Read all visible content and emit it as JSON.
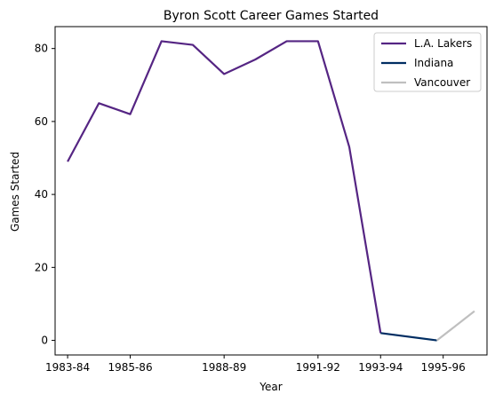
{
  "chart_data": {
    "type": "line",
    "title": "Byron Scott Career Games Started",
    "xlabel": "Year",
    "ylabel": "Games Started",
    "x_ticks": [
      "1983-84",
      "1985-86",
      "1988-89",
      "1991-92",
      "1993-94",
      "1995-96"
    ],
    "x_tick_index": [
      0,
      2,
      5,
      8,
      10,
      12
    ],
    "ylim": [
      -4,
      86
    ],
    "y_ticks": [
      0,
      20,
      40,
      60,
      80
    ],
    "xlim": [
      -0.4,
      13.4
    ],
    "grid": false,
    "legend_position": "top-right",
    "series": [
      {
        "name": "L.A. Lakers",
        "color": "#552583",
        "x": [
          0,
          1,
          2,
          3,
          4,
          5,
          6,
          7,
          8,
          9,
          10
        ],
        "values": [
          49,
          65,
          62,
          82,
          81,
          73,
          77,
          82,
          82,
          53,
          2
        ]
      },
      {
        "name": "Indiana",
        "color": "#002D62",
        "x": [
          10,
          11.8
        ],
        "values": [
          2,
          0
        ]
      },
      {
        "name": "Vancouver",
        "color": "#BFBFBF",
        "x": [
          11.8,
          13
        ],
        "values": [
          0,
          8
        ]
      }
    ]
  }
}
